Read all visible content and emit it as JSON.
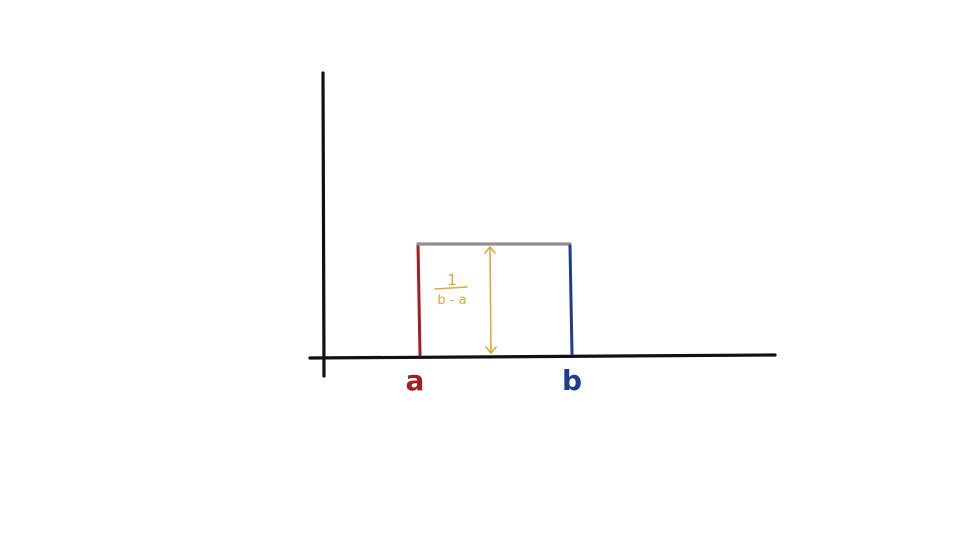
{
  "diagram": {
    "labels": {
      "left_endpoint": "a",
      "right_endpoint": "b",
      "height_numerator": "1",
      "height_denominator": "b - a"
    },
    "colors": {
      "axes": "#111111",
      "left_edge": "#a31f1f",
      "right_edge": "#1f3c93",
      "top_edge": "#8f8f8f",
      "height_arrow": "#e4a73a",
      "left_label": "#a31f1f",
      "right_label": "#1f3c93",
      "fraction": "#e4a73a"
    }
  }
}
